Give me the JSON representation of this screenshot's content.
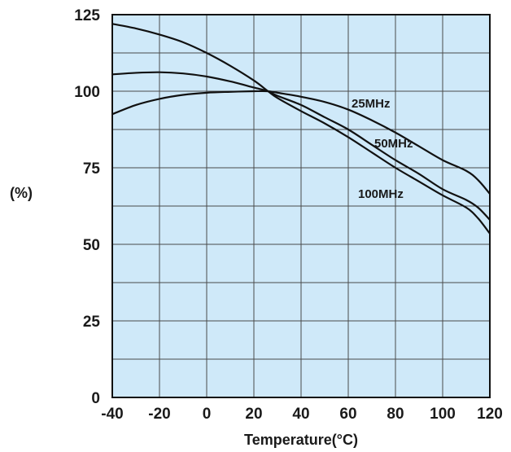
{
  "chart_data": {
    "type": "line",
    "title": "",
    "xlabel": "Temperature(°C)",
    "ylabel": "(%)",
    "xlim": [
      -40,
      120
    ],
    "ylim": [
      0,
      125
    ],
    "x_ticks": [
      -40,
      -20,
      0,
      20,
      40,
      60,
      80,
      100,
      120
    ],
    "y_ticks": [
      0,
      25,
      50,
      75,
      100,
      125
    ],
    "x_tick_labels": [
      "-40",
      "-20",
      "0",
      "20",
      "40",
      "60",
      "80",
      "100",
      "120"
    ],
    "y_tick_labels": [
      "0",
      "25",
      "50",
      "75",
      "100",
      "125"
    ],
    "grid": true,
    "legend": "none",
    "series": [
      {
        "name": "25MHz",
        "x": [
          -40,
          -30,
          -20,
          -10,
          0,
          10,
          20,
          26,
          30,
          40,
          50,
          60,
          70,
          80,
          90,
          100,
          110,
          115,
          120
        ],
        "values": [
          92.5,
          95.5,
          97.5,
          98.8,
          99.5,
          99.8,
          100,
          100,
          99.5,
          98.2,
          96.5,
          94,
          90.5,
          86.5,
          82,
          77.5,
          74,
          71,
          66.5
        ]
      },
      {
        "name": "50MHz",
        "x": [
          -40,
          -30,
          -20,
          -10,
          0,
          10,
          20,
          26,
          30,
          40,
          50,
          60,
          70,
          80,
          90,
          100,
          110,
          115,
          120
        ],
        "values": [
          105.5,
          106,
          106.2,
          105.8,
          104.8,
          103.2,
          101.2,
          100,
          98.5,
          95.5,
          91.5,
          87.5,
          82.5,
          77.5,
          73,
          68,
          64.5,
          62,
          58
        ]
      },
      {
        "name": "100MHz",
        "x": [
          -40,
          -30,
          -20,
          -10,
          0,
          10,
          20,
          26,
          30,
          40,
          50,
          60,
          70,
          80,
          90,
          100,
          110,
          115,
          120
        ],
        "values": [
          122,
          120.5,
          118.5,
          116,
          112.5,
          108.3,
          103.5,
          100,
          97.8,
          93.5,
          89.5,
          85,
          80,
          75,
          70.5,
          66,
          62,
          58.5,
          53.5
        ]
      }
    ],
    "series_labels": [
      "25MHz",
      "50MHz",
      "100MHz"
    ]
  },
  "colors": {
    "plot_background": "#cfe9f9",
    "grid": "#4a4a4a",
    "series_line": "#111111",
    "text": "#1a1a1a"
  }
}
